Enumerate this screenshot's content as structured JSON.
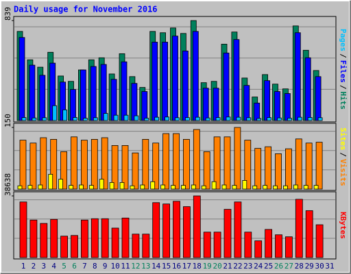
{
  "chart_data": [
    {
      "type": "bar",
      "title": "Daily usage for November 2016",
      "legend_separator": "/",
      "ylim": [
        0,
        839
      ],
      "yticks": [
        839
      ],
      "series": [
        {
          "name": "Hits",
          "color": "#00805c",
          "values": [
            748,
            510,
            448,
            573,
            374,
            329,
            425,
            510,
            527,
            391,
            561,
            369,
            278,
            748,
            737,
            777,
            731,
            839,
            318,
            329,
            641,
            743,
            357,
            198,
            386,
            306,
            266,
            794,
            590,
            420,
            0
          ]
        },
        {
          "name": "Files",
          "color": "#0000ff",
          "values": [
            697,
            465,
            380,
            482,
            323,
            261,
            425,
            454,
            471,
            346,
            493,
            312,
            244,
            658,
            658,
            709,
            584,
            748,
            272,
            272,
            567,
            680,
            295,
            147,
            335,
            244,
            227,
            737,
            527,
            369,
            0
          ]
        },
        {
          "name": "Pages",
          "color": "#00c0ff",
          "values": [
            25,
            22,
            24,
            125,
            90,
            26,
            20,
            24,
            60,
            45,
            45,
            40,
            20,
            28,
            30,
            24,
            25,
            28,
            22,
            25,
            30,
            28,
            24,
            18,
            25,
            22,
            20,
            28,
            26,
            24,
            0
          ]
        }
      ]
    },
    {
      "type": "bar",
      "legend_separator": "/",
      "ylim": [
        0,
        150
      ],
      "yticks": [
        150
      ],
      "series": [
        {
          "name": "Visits",
          "color": "#ff8000",
          "values": [
            119,
            112,
            125,
            121,
            91,
            127,
            119,
            121,
            125,
            106,
            106,
            88,
            121,
            112,
            135,
            135,
            121,
            145,
            91,
            127,
            127,
            150,
            119,
            99,
            103,
            86,
            98,
            122,
            112,
            114,
            0
          ]
        },
        {
          "name": "Sites",
          "color": "#ffff00",
          "values": [
            8,
            9,
            10,
            36,
            24,
            9,
            10,
            9,
            24,
            16,
            16,
            8,
            10,
            18,
            10,
            9,
            9,
            10,
            8,
            18,
            10,
            9,
            21,
            8,
            9,
            8,
            8,
            10,
            9,
            9,
            0
          ]
        }
      ]
    },
    {
      "type": "bar",
      "ylim": [
        0,
        38638
      ],
      "yticks": [
        38638
      ],
      "categories": [
        "1",
        "2",
        "3",
        "4",
        "5",
        "6",
        "7",
        "8",
        "9",
        "10",
        "11",
        "12",
        "13",
        "14",
        "15",
        "16",
        "17",
        "18",
        "19",
        "20",
        "21",
        "22",
        "23",
        "24",
        "25",
        "26",
        "27",
        "28",
        "29",
        "30",
        "31"
      ],
      "category_label_colors": [
        "#000080",
        "#000080",
        "#000080",
        "#000080",
        "#00805c",
        "#00805c",
        "#000080",
        "#000080",
        "#000080",
        "#000080",
        "#000080",
        "#00805c",
        "#00805c",
        "#000080",
        "#000080",
        "#000080",
        "#000080",
        "#000080",
        "#00805c",
        "#00805c",
        "#000080",
        "#000080",
        "#000080",
        "#000080",
        "#000080",
        "#00805c",
        "#00805c",
        "#000080",
        "#000080",
        "#000080",
        "#000080"
      ],
      "series": [
        {
          "name": "KBytes",
          "color": "#ff0000",
          "values": [
            34860,
            23520,
            21420,
            23940,
            13440,
            13860,
            23520,
            24360,
            24360,
            18480,
            24780,
            14700,
            14700,
            34440,
            33600,
            35280,
            31920,
            38638,
            15960,
            15960,
            30240,
            34860,
            15960,
            10500,
            17640,
            14280,
            13020,
            36540,
            29400,
            20580,
            0
          ]
        }
      ]
    }
  ]
}
